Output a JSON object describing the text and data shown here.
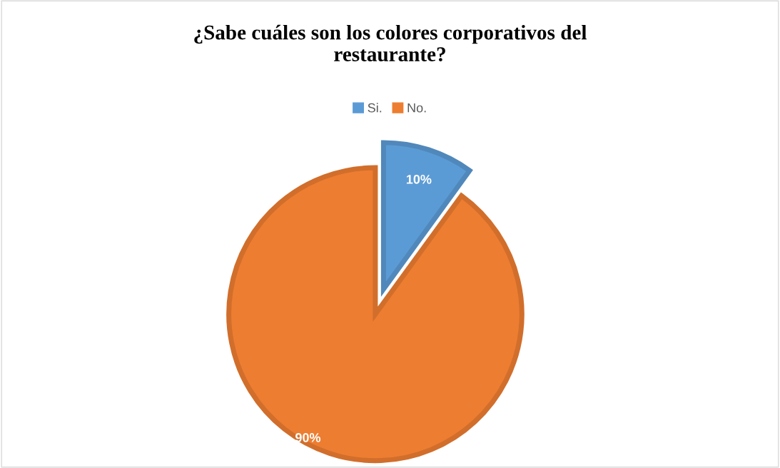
{
  "chart_data": {
    "type": "pie",
    "title": "¿Sabe cuáles son los colores corporativos del\nrestaurante?",
    "categories": [
      "Si.",
      "No."
    ],
    "values": [
      10,
      90
    ],
    "colors": [
      "#5b9bd5",
      "#ed7d31"
    ],
    "value_labels": [
      "10%",
      "90%"
    ],
    "legend": "top"
  }
}
